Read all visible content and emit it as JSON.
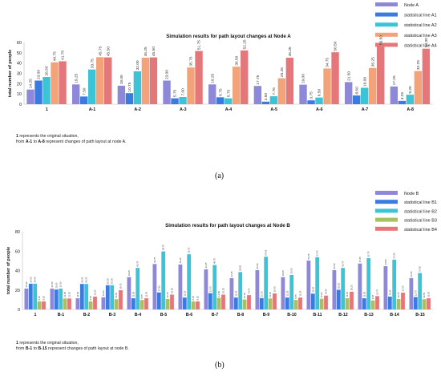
{
  "chart_data": [
    {
      "type": "bar",
      "title": "Simulation results for path layout changes at Node A",
      "ylabel": "total number of people",
      "xlabel": "",
      "ylim": [
        0,
        60
      ],
      "yticks": [
        0,
        10,
        20,
        30,
        40,
        50,
        60
      ],
      "grid": false,
      "legend_position": "top-right",
      "categories": [
        "1",
        "A-1",
        "A-2",
        "A-3",
        "A-4",
        "A-5",
        "A-6",
        "A-7",
        "A-8"
      ],
      "series": [
        {
          "name": "Node A",
          "color": "#8e88d8",
          "values": [
            14.25,
            19.25,
            18.0,
            23.0,
            19.25,
            17.75,
            19.0,
            21.5,
            17.25
          ]
        },
        {
          "name": "statistical line A1",
          "color": "#3a7be0",
          "values": [
            23.0,
            7.5,
            10.75,
            5.75,
            6.75,
            2.5,
            3.75,
            8.5,
            3.25
          ]
        },
        {
          "name": "statistical line A2",
          "color": "#3cc4d6",
          "values": [
            26.5,
            33.75,
            32.0,
            7.0,
            5.75,
            7.75,
            6.5,
            16.0,
            9.25
          ]
        },
        {
          "name": "statistical line A3",
          "color": "#f2a37a",
          "values": [
            40.75,
            45.75,
            45.25,
            35.75,
            36.5,
            25.25,
            34.75,
            35.25,
            32.25
          ]
        },
        {
          "name": "statistical line A4",
          "color": "#e4777a",
          "values": [
            41.75,
            45.5,
            45.5,
            51.75,
            52.25,
            45.25,
            50.5,
            56.5,
            54.0
          ]
        }
      ],
      "data_labels": true
    },
    {
      "type": "bar",
      "title": "Simulation results for path layout changes at Node B",
      "ylabel": "total number of people",
      "xlabel": "",
      "ylim": [
        0,
        80
      ],
      "yticks": [
        0,
        20,
        40,
        60,
        80
      ],
      "grid": false,
      "legend_position": "top-right",
      "categories": [
        "1",
        "B-1",
        "B-2",
        "B-3",
        "B-4",
        "B-5",
        "B-6",
        "B-7",
        "B-8",
        "B-9",
        "B-10",
        "B-11",
        "B-12",
        "B-13",
        "B-14",
        "B-15"
      ],
      "series": [
        {
          "name": "Node B",
          "color": "#8e88d8",
          "values": [
            21.5,
            21.5,
            11.5,
            12.5,
            33.25,
            46.75,
            46.25,
            41.25,
            32.25,
            40.5,
            33.25,
            50.25,
            40.5,
            47.25,
            44.5,
            32.25
          ]
        },
        {
          "name": "statistical line B1",
          "color": "#3a7be0",
          "values": [
            26.5,
            20.5,
            26.25,
            25.0,
            11.5,
            17.5,
            12.25,
            16.75,
            12.25,
            11.75,
            12.25,
            16.25,
            20.25,
            11.5,
            13.25,
            12.75
          ]
        },
        {
          "name": "statistical line B2",
          "color": "#3cc4d6",
          "values": [
            26.5,
            21.5,
            26.25,
            25.0,
            42.75,
            59.75,
            56.75,
            45.75,
            38.5,
            54.25,
            35.5,
            53.75,
            42.75,
            52.75,
            51.25,
            37.5
          ]
        },
        {
          "name": "statistical line B3",
          "color": "#a6c25e",
          "values": [
            8.25,
            11.25,
            8.25,
            10.5,
            9.75,
            10.75,
            8.25,
            12.0,
            10.25,
            11.25,
            9.75,
            11.0,
            11.5,
            9.25,
            10.75,
            10.5
          ]
        },
        {
          "name": "statistical line B4",
          "color": "#e4777a",
          "values": [
            8.25,
            11.25,
            13.25,
            19.75,
            11.5,
            15.25,
            8.25,
            15.25,
            14.75,
            16.5,
            12.25,
            14.25,
            18.25,
            13.75,
            17.25,
            11.5
          ]
        }
      ],
      "data_labels": true
    }
  ],
  "notes": {
    "a_line1_bold": "1",
    "a_line1_rest": " represents the original situation,",
    "a_line2_pre": "from ",
    "a_line2_b1": "A-1",
    "a_line2_mid": " to ",
    "a_line2_b2": "A-8",
    "a_line2_post": " represent changes of path layout at node A.",
    "b_line1_bold": "1",
    "b_line1_rest": " represents the original situation,",
    "b_line2_pre": "from ",
    "b_line2_b1": "B-1",
    "b_line2_mid": " to ",
    "b_line2_b2": "B-15",
    "b_line2_post": " represent changes of path layout at node B."
  },
  "subfig": {
    "a": "(a)",
    "b": "(b)"
  }
}
